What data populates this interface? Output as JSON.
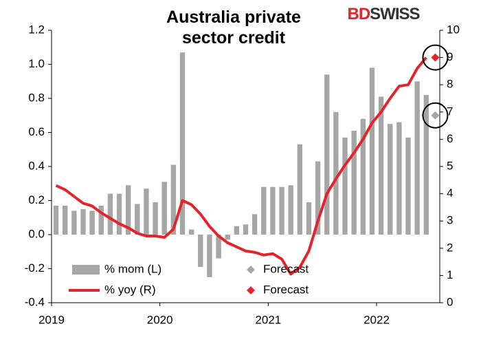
{
  "chart_data": {
    "type": "bar_line",
    "title": "Australia private sector credit",
    "logo": [
      "BD",
      "SWISS"
    ],
    "categories": [
      "2019",
      null,
      null,
      null,
      null,
      null,
      null,
      null,
      null,
      null,
      null,
      null,
      "2020",
      null,
      null,
      null,
      null,
      null,
      null,
      null,
      null,
      null,
      null,
      null,
      "2021",
      null,
      null,
      null,
      null,
      null,
      null,
      null,
      null,
      null,
      null,
      null,
      "2022",
      null,
      null,
      null,
      null,
      null,
      null
    ],
    "series": [
      {
        "name": "% mom (L)",
        "type": "bar",
        "axis": "y",
        "color": "#a6a6a6",
        "values": [
          0.17,
          0.17,
          0.14,
          0.15,
          0.14,
          0.17,
          0.24,
          0.24,
          0.29,
          0.18,
          0.27,
          0.19,
          0.31,
          0.41,
          1.07,
          0.03,
          -0.19,
          -0.25,
          -0.14,
          -0.03,
          0.05,
          0.06,
          0.12,
          0.28,
          0.28,
          0.28,
          0.29,
          0.53,
          0.19,
          0.43,
          0.94,
          0.72,
          0.57,
          0.61,
          0.68,
          0.98,
          0.81,
          0.65,
          0.66,
          0.57,
          0.9,
          0.82,
          null
        ]
      },
      {
        "name": "% yoy (R)",
        "type": "line",
        "axis": "y2",
        "color": "#e5232b",
        "values": [
          4.3,
          4.15,
          3.9,
          3.65,
          3.55,
          3.3,
          3.1,
          2.9,
          2.75,
          2.55,
          2.45,
          2.45,
          2.4,
          2.7,
          3.75,
          3.6,
          3.25,
          2.8,
          2.45,
          2.2,
          2.05,
          1.9,
          1.85,
          1.75,
          1.8,
          1.6,
          1.05,
          1.3,
          1.9,
          3.0,
          4.0,
          4.55,
          5.05,
          5.5,
          6.0,
          6.6,
          7.0,
          7.5,
          7.95,
          8.0,
          8.6,
          9.0,
          null
        ]
      },
      {
        "name": "Forecast",
        "type": "marker",
        "axis": "y",
        "color": "#a6a6a6",
        "values": [
          null,
          null,
          null,
          null,
          null,
          null,
          null,
          null,
          null,
          null,
          null,
          null,
          null,
          null,
          null,
          null,
          null,
          null,
          null,
          null,
          null,
          null,
          null,
          null,
          null,
          null,
          null,
          null,
          null,
          null,
          null,
          null,
          null,
          null,
          null,
          null,
          null,
          null,
          null,
          null,
          null,
          null,
          0.7
        ]
      },
      {
        "name": "Forecast",
        "type": "marker",
        "axis": "y2",
        "color": "#e5232b",
        "values": [
          null,
          null,
          null,
          null,
          null,
          null,
          null,
          null,
          null,
          null,
          null,
          null,
          null,
          null,
          null,
          null,
          null,
          null,
          null,
          null,
          null,
          null,
          null,
          null,
          null,
          null,
          null,
          null,
          null,
          null,
          null,
          null,
          null,
          null,
          null,
          null,
          null,
          null,
          null,
          null,
          null,
          null,
          9.0
        ]
      }
    ],
    "ylim": [
      -0.4,
      1.2
    ],
    "yticks": [
      -0.4,
      -0.2,
      {
        "value": 0,
        "label": "0.0"
      },
      0.2,
      0.4,
      0.6,
      0.8,
      {
        "value": 1,
        "label": "1.0"
      },
      1.2
    ],
    "y2lim": [
      0,
      10
    ],
    "y2ticks": [
      0,
      1,
      2,
      3,
      4,
      5,
      6,
      7,
      8,
      9,
      10
    ],
    "grid": false
  }
}
